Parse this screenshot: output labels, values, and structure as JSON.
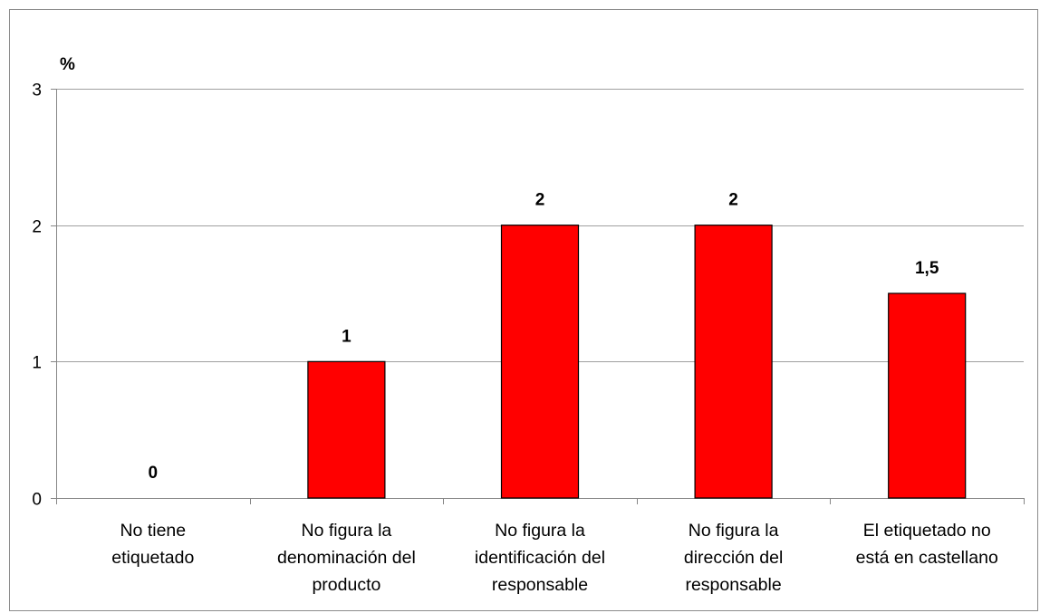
{
  "chart_data": {
    "type": "bar",
    "title": "",
    "unit_label": "%",
    "categories": [
      [
        "No tiene",
        "etiquetado"
      ],
      [
        "No figura la",
        "denominación del",
        "producto"
      ],
      [
        "No figura la",
        "identificación del",
        "responsable"
      ],
      [
        "No figura la",
        "dirección del",
        "responsable"
      ],
      [
        "El etiquetado no",
        "está en castellano"
      ]
    ],
    "values": [
      0,
      1,
      2,
      2,
      1.5
    ],
    "data_labels": [
      "0",
      "1",
      "2",
      "2",
      "1,5"
    ],
    "ylim": [
      0,
      3
    ],
    "yticks": [
      0,
      1,
      2,
      3
    ],
    "ytick_labels": [
      "0",
      "1",
      "2",
      "3"
    ],
    "grid": true,
    "legend": "none",
    "bar_color": "#ff0000",
    "bar_edge_color": "#000000",
    "grid_color": "#a0a0a0"
  }
}
